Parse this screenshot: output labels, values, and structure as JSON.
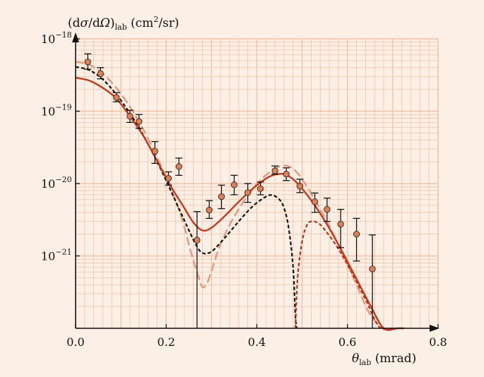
{
  "chart_data": {
    "type": "scatter",
    "ylabel": "(dσ/dΩ)lab (cm²/sr)",
    "ylabel_parts": {
      "main": "(d",
      "sigma": "σ",
      "slash": "/d",
      "omega": "Ω",
      "close": ")",
      "sub": "lab",
      "unit": " (cm",
      "sup": "2",
      "unit_end": "/sr)"
    },
    "xlabel": "θlab (mrad)",
    "xlabel_parts": {
      "theta": "θ",
      "sub": "lab",
      "unit": " (mrad)"
    },
    "x_ticks": [
      {
        "value": 0.0,
        "label": "0.0"
      },
      {
        "value": 0.2,
        "label": "0.2"
      },
      {
        "value": 0.4,
        "label": "0.4"
      },
      {
        "value": 0.6,
        "label": "0.6"
      },
      {
        "value": 0.8,
        "label": "0.8"
      }
    ],
    "y_ticks": [
      {
        "exp": -18,
        "label_base": "10",
        "label_exp": "−18"
      },
      {
        "exp": -19,
        "label_base": "10",
        "label_exp": "−19"
      },
      {
        "exp": -20,
        "label_base": "10",
        "label_exp": "−20"
      },
      {
        "exp": -21,
        "label_base": "10",
        "label_exp": "−21"
      }
    ],
    "xlim": [
      0,
      0.8
    ],
    "ylim_log10": [
      -22,
      -18
    ],
    "y_scale": "log",
    "grid": true,
    "colors": {
      "background": "#fcefe6",
      "grid": "#f0c4a8",
      "solid": "#c0391b",
      "dashed_light": "#dd9a80",
      "dashed_black": "#111111",
      "dashed_red": "#b83418",
      "point_fill": "#d9825a",
      "axis": "#111111"
    },
    "data_points": [
      {
        "x": 0.027,
        "y": 4.8e-19,
        "ylo": 3.8e-19,
        "yhi": 6.2e-19
      },
      {
        "x": 0.055,
        "y": 3.3e-19,
        "ylo": 2.8e-19,
        "yhi": 4e-19
      },
      {
        "x": 0.09,
        "y": 1.55e-19,
        "ylo": 1.35e-19,
        "yhi": 1.8e-19
      },
      {
        "x": 0.12,
        "y": 8.5e-20,
        "ylo": 7e-20,
        "yhi": 1.03e-19
      },
      {
        "x": 0.14,
        "y": 7.2e-20,
        "ylo": 5.8e-20,
        "yhi": 9e-20
      },
      {
        "x": 0.175,
        "y": 2.8e-20,
        "ylo": 1.9e-20,
        "yhi": 3.8e-20
      },
      {
        "x": 0.205,
        "y": 1.18e-20,
        "ylo": 9.5e-21,
        "yhi": 1.45e-20
      },
      {
        "x": 0.228,
        "y": 1.72e-20,
        "ylo": 1.3e-20,
        "yhi": 2.25e-20
      },
      {
        "x": 0.268,
        "y": 1.65e-21,
        "ylo": 1e-22,
        "yhi": 4.1e-21
      },
      {
        "x": 0.295,
        "y": 4.3e-21,
        "ylo": 3.3e-21,
        "yhi": 5.8e-21
      },
      {
        "x": 0.322,
        "y": 6.6e-21,
        "ylo": 4.5e-21,
        "yhi": 9.5e-21
      },
      {
        "x": 0.35,
        "y": 9.6e-21,
        "ylo": 7e-21,
        "yhi": 1.3e-20
      },
      {
        "x": 0.38,
        "y": 7.5e-21,
        "ylo": 5.5e-21,
        "yhi": 1e-20
      },
      {
        "x": 0.408,
        "y": 8.5e-21,
        "ylo": 7e-21,
        "yhi": 1.05e-20
      },
      {
        "x": 0.44,
        "y": 1.5e-20,
        "ylo": 1.35e-20,
        "yhi": 1.75e-20
      },
      {
        "x": 0.465,
        "y": 1.35e-20,
        "ylo": 1.1e-20,
        "yhi": 1.65e-20
      },
      {
        "x": 0.495,
        "y": 9.2e-21,
        "ylo": 7.5e-21,
        "yhi": 1.15e-20
      },
      {
        "x": 0.528,
        "y": 5.6e-21,
        "ylo": 4e-21,
        "yhi": 7.4e-21
      },
      {
        "x": 0.555,
        "y": 4.4e-21,
        "ylo": 3e-21,
        "yhi": 6.3e-21
      },
      {
        "x": 0.585,
        "y": 2.75e-21,
        "ylo": 1.3e-21,
        "yhi": 4.4e-21
      },
      {
        "x": 0.62,
        "y": 2e-21,
        "ylo": 8.5e-22,
        "yhi": 3.3e-21
      },
      {
        "x": 0.655,
        "y": 6.6e-22,
        "ylo": 1e-22,
        "yhi": 1.95e-21
      }
    ],
    "curves": [
      {
        "style": "solid",
        "points": [
          [
            0.0,
            2.9e-19
          ],
          [
            0.03,
            2.65e-19
          ],
          [
            0.06,
            2.1e-19
          ],
          [
            0.09,
            1.5e-19
          ],
          [
            0.12,
            8.5e-20
          ],
          [
            0.15,
            4.5e-20
          ],
          [
            0.18,
            2.05e-20
          ],
          [
            0.21,
            9.2e-21
          ],
          [
            0.24,
            4.6e-21
          ],
          [
            0.26,
            2.9e-21
          ],
          [
            0.28,
            2.25e-21
          ],
          [
            0.3,
            2.45e-21
          ],
          [
            0.33,
            3.6e-21
          ],
          [
            0.36,
            5.6e-21
          ],
          [
            0.39,
            8.4e-21
          ],
          [
            0.42,
            1.17e-20
          ],
          [
            0.44,
            1.33e-20
          ],
          [
            0.46,
            1.35e-20
          ],
          [
            0.48,
            1.15e-20
          ],
          [
            0.5,
            8.5e-21
          ],
          [
            0.53,
            4.8e-21
          ],
          [
            0.56,
            2.4e-21
          ],
          [
            0.59,
            1.1e-21
          ],
          [
            0.62,
            4.8e-22
          ],
          [
            0.65,
            2.1e-22
          ],
          [
            0.68,
            9e-23
          ],
          [
            0.71,
            3.6e-23
          ],
          [
            0.725,
            2.5e-23
          ]
        ]
      },
      {
        "style": "dashed_light",
        "points": [
          [
            0.0,
            4.8e-19
          ],
          [
            0.03,
            4.4e-19
          ],
          [
            0.06,
            3.3e-19
          ],
          [
            0.09,
            2.1e-19
          ],
          [
            0.12,
            1.15e-19
          ],
          [
            0.15,
            5.5e-20
          ],
          [
            0.18,
            2.3e-20
          ],
          [
            0.21,
            8.5e-21
          ],
          [
            0.235,
            3.2e-21
          ],
          [
            0.255,
            1.1e-21
          ],
          [
            0.27,
            5.5e-22
          ],
          [
            0.28,
            3.7e-22
          ],
          [
            0.29,
            4.2e-22
          ],
          [
            0.3,
            6.2e-22
          ],
          [
            0.32,
            1.45e-21
          ],
          [
            0.35,
            3.5e-21
          ],
          [
            0.38,
            6.8e-21
          ],
          [
            0.41,
            1.15e-20
          ],
          [
            0.44,
            1.6e-20
          ],
          [
            0.46,
            1.78e-20
          ],
          [
            0.48,
            1.6e-20
          ],
          [
            0.5,
            1.15e-20
          ],
          [
            0.53,
            5.7e-21
          ],
          [
            0.56,
            2.6e-21
          ],
          [
            0.59,
            1.05e-21
          ],
          [
            0.62,
            4e-22
          ],
          [
            0.65,
            1.55e-22
          ],
          [
            0.68,
            6e-23
          ],
          [
            0.7,
            3e-23
          ]
        ]
      },
      {
        "style": "dashed_black",
        "points": [
          [
            0.0,
            4.1e-19
          ],
          [
            0.03,
            3.7e-19
          ],
          [
            0.06,
            2.75e-19
          ],
          [
            0.09,
            1.7e-19
          ],
          [
            0.12,
            9.3e-20
          ],
          [
            0.15,
            4.6e-20
          ],
          [
            0.18,
            2e-20
          ],
          [
            0.21,
            8e-21
          ],
          [
            0.24,
            3.1e-21
          ],
          [
            0.265,
            1.45e-21
          ],
          [
            0.28,
            1.1e-21
          ],
          [
            0.3,
            1.15e-21
          ],
          [
            0.33,
            1.8e-21
          ],
          [
            0.36,
            3e-21
          ],
          [
            0.39,
            4.8e-21
          ],
          [
            0.42,
            6.6e-21
          ],
          [
            0.435,
            6.9e-21
          ],
          [
            0.45,
            6e-21
          ],
          [
            0.46,
            4.6e-21
          ],
          [
            0.47,
            2.5e-21
          ],
          [
            0.48,
            7e-22
          ],
          [
            0.485,
            1.5e-22
          ],
          [
            0.488,
            1e-22
          ]
        ]
      },
      {
        "style": "dashed_red",
        "points": [
          [
            0.485,
            1e-22
          ],
          [
            0.49,
            5e-22
          ],
          [
            0.5,
            1.6e-21
          ],
          [
            0.51,
            2.6e-21
          ],
          [
            0.52,
            3e-21
          ],
          [
            0.535,
            2.85e-21
          ],
          [
            0.55,
            2.3e-21
          ],
          [
            0.58,
            1.25e-21
          ],
          [
            0.61,
            5.8e-22
          ],
          [
            0.64,
            2.5e-22
          ],
          [
            0.67,
            1.05e-22
          ],
          [
            0.7,
            4.2e-23
          ],
          [
            0.72,
            2.5e-23
          ]
        ]
      }
    ]
  }
}
